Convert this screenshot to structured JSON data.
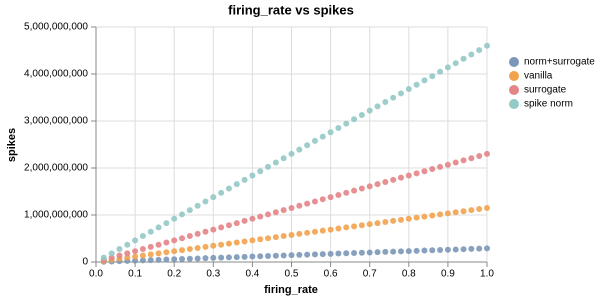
{
  "chart_data": {
    "type": "scatter",
    "title": "firing_rate vs spikes",
    "x_label": "firing_rate",
    "y_label": "spikes",
    "x": [
      0.02,
      0.04,
      0.06,
      0.08,
      0.1,
      0.12,
      0.14,
      0.16,
      0.18,
      0.2,
      0.22,
      0.24,
      0.26,
      0.28,
      0.3,
      0.32,
      0.34,
      0.36,
      0.38,
      0.4,
      0.42,
      0.44,
      0.46,
      0.48,
      0.5,
      0.52,
      0.54,
      0.56,
      0.58,
      0.6,
      0.62,
      0.64,
      0.66,
      0.68,
      0.7,
      0.72,
      0.74,
      0.76,
      0.78,
      0.8,
      0.82,
      0.84,
      0.86,
      0.88,
      0.9,
      0.92,
      0.94,
      0.96,
      0.98,
      1.0
    ],
    "series": [
      {
        "name": "norm+surrogate",
        "color": "#7b97b8",
        "values": [
          5800000.0,
          11600000.0,
          17400000.0,
          23200000.0,
          29000000.0,
          34800000.0,
          40600000.0,
          46400000.0,
          52200000.0,
          58000000.0,
          63800000.0,
          69600000.0,
          75400000.0,
          81200000.0,
          87000000.0,
          92800000.0,
          98600000.0,
          104400000.0,
          110200000.0,
          116000000.0,
          121800000.0,
          127600000.0,
          133400000.0,
          139200000.0,
          145000000.0,
          150800000.0,
          156600000.0,
          162400000.0,
          168200000.0,
          174000000.0,
          179800000.0,
          185600000.0,
          191400000.0,
          197200000.0,
          203000000.0,
          208800000.0,
          214600000.0,
          220400000.0,
          226200000.0,
          232000000.0,
          237800000.0,
          243600000.0,
          249400000.0,
          255200000.0,
          261000000.0,
          266800000.0,
          272600000.0,
          278400000.0,
          284200000.0,
          290000000.0
        ]
      },
      {
        "name": "vanilla",
        "color": "#f2a34e",
        "values": [
          23000000.0,
          46000000.0,
          69000000.0,
          92000000.0,
          115000000.0,
          138000000.0,
          161000000.0,
          184000000.0,
          207000000.0,
          230000000.0,
          253000000.0,
          276000000.0,
          299000000.0,
          322000000.0,
          345000000.0,
          368000000.0,
          391000000.0,
          414000000.0,
          437000000.0,
          460000000.0,
          483000000.0,
          506000000.0,
          529000000.0,
          552000000.0,
          575000000.0,
          598000000.0,
          621000000.0,
          644000000.0,
          667000000.0,
          690000000.0,
          713000000.0,
          736000000.0,
          759000000.0,
          782000000.0,
          805000000.0,
          828000000.0,
          851000000.0,
          874000000.0,
          897000000.0,
          920000000.0,
          943000000.0,
          966000000.0,
          989000000.0,
          1012000000.0,
          1035000000.0,
          1058000000.0,
          1081000000.0,
          1104000000.0,
          1127000000.0,
          1150000000.0
        ]
      },
      {
        "name": "surrogate",
        "color": "#e48487",
        "values": [
          46000000.0,
          92000000.0,
          138000000.0,
          184000000.0,
          230000000.0,
          276000000.0,
          322000000.0,
          368000000.0,
          414000000.0,
          460000000.0,
          506000000.0,
          552000000.0,
          598000000.0,
          644000000.0,
          690000000.0,
          736000000.0,
          782000000.0,
          828000000.0,
          874000000.0,
          920000000.0,
          966000000.0,
          1012000000.0,
          1058000000.0,
          1104000000.0,
          1150000000.0,
          1196000000.0,
          1242000000.0,
          1288000000.0,
          1334000000.0,
          1380000000.0,
          1426000000.0,
          1472000000.0,
          1518000000.0,
          1564000000.0,
          1610000000.0,
          1656000000.0,
          1702000000.0,
          1748000000.0,
          1794000000.0,
          1840000000.0,
          1886000000.0,
          1932000000.0,
          1978000000.0,
          2024000000.0,
          2070000000.0,
          2116000000.0,
          2162000000.0,
          2208000000.0,
          2254000000.0,
          2300000000.0
        ]
      },
      {
        "name": "spike norm",
        "color": "#94c9c5",
        "values": [
          92000000.0,
          184000000.0,
          276000000.0,
          368000000.0,
          460000000.0,
          552000000.0,
          644000000.0,
          736000000.0,
          828000000.0,
          920000000.0,
          1012000000.0,
          1104000000.0,
          1196000000.0,
          1288000000.0,
          1380000000.0,
          1472000000.0,
          1564000000.0,
          1656000000.0,
          1748000000.0,
          1840000000.0,
          1932000000.0,
          2024000000.0,
          2116000000.0,
          2208000000.0,
          2300000000.0,
          2392000000.0,
          2484000000.0,
          2576000000.0,
          2668000000.0,
          2760000000.0,
          2852000000.0,
          2944000000.0,
          3036000000.0,
          3128000000.0,
          3220000000.0,
          3312000000.0,
          3404000000.0,
          3496000000.0,
          3588000000.0,
          3680000000.0,
          3772000000.0,
          3864000000.0,
          3956000000.0,
          4048000000.0,
          4140000000.0,
          4232000000.0,
          4324000000.0,
          4416000000.0,
          4508000000.0,
          4600000000.0
        ]
      }
    ],
    "xlim": [
      0,
      1
    ],
    "xticks": [
      {
        "value": 0,
        "label": "0.0"
      },
      0.1,
      0.2,
      0.3,
      0.4,
      0.5,
      0.6,
      0.7,
      0.8,
      0.9,
      {
        "value": 1,
        "label": "1.0"
      }
    ],
    "ylim": [
      0,
      5000000000
    ],
    "yticks": [
      0,
      {
        "value": 1000000000,
        "label": "1,000,000,000"
      },
      {
        "value": 2000000000,
        "label": "2,000,000,000"
      },
      {
        "value": 3000000000,
        "label": "3,000,000,000"
      },
      {
        "value": 4000000000,
        "label": "4,000,000,000"
      },
      {
        "value": 5000000000,
        "label": "5,000,000,000"
      }
    ],
    "grid": true,
    "legend": "right"
  }
}
